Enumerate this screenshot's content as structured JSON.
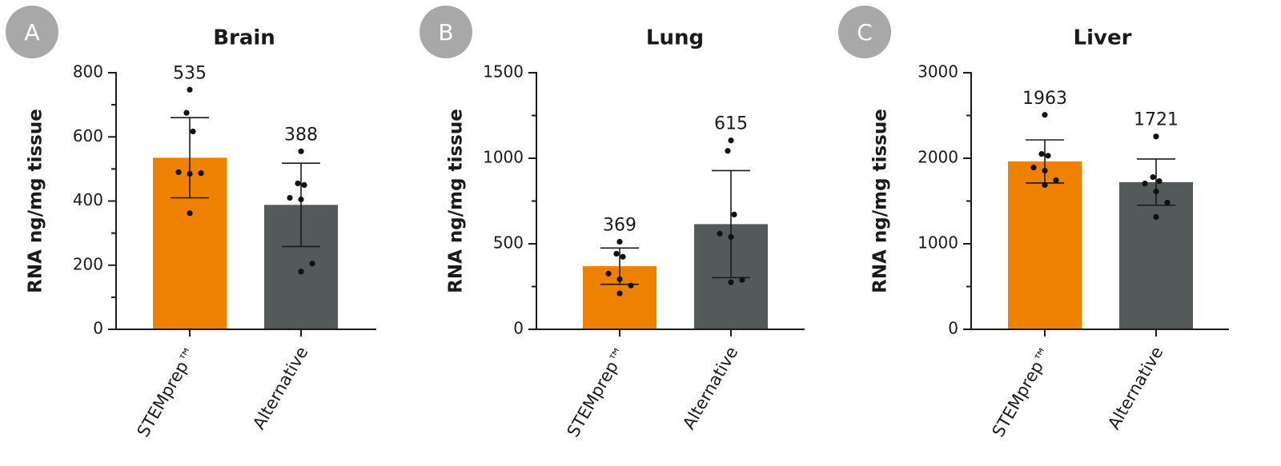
{
  "chart_data": [
    {
      "type": "bar",
      "panel": "A",
      "title": "Brain",
      "ylabel": "RNA ng/mg tissue",
      "categories": [
        "STEMprep™",
        "Alternative"
      ],
      "values": [
        535,
        388
      ],
      "errors": [
        125,
        130
      ],
      "colors": [
        "#ee8100",
        "#54595a"
      ],
      "points": [
        [
          747,
          675,
          617,
          490,
          485,
          487,
          362
        ],
        [
          555,
          455,
          450,
          410,
          405,
          205,
          180
        ]
      ],
      "ylim": [
        0,
        800
      ],
      "yticks": [
        0,
        200,
        400,
        600,
        800
      ],
      "yminorticks": [
        100,
        300,
        500,
        700
      ]
    },
    {
      "type": "bar",
      "panel": "B",
      "title": "Lung",
      "ylabel": "RNA ng/mg tissue",
      "categories": [
        "STEMprep™",
        "Alternative"
      ],
      "values": [
        369,
        615
      ],
      "errors": [
        106,
        313
      ],
      "colors": [
        "#ee8100",
        "#54595a"
      ],
      "points": [
        [
          512,
          442,
          424,
          326,
          293,
          256,
          210
        ],
        [
          1104,
          1043,
          671,
          559,
          540,
          289,
          275
        ]
      ],
      "ylim": [
        0,
        1500
      ],
      "yticks": [
        0,
        500,
        1000,
        1500
      ],
      "yminorticks": [
        250,
        750,
        1250
      ]
    },
    {
      "type": "bar",
      "panel": "C",
      "title": "Liver",
      "ylabel": "RNA ng/mg tissue",
      "categories": [
        "STEMprep™",
        "Alternative"
      ],
      "values": [
        1963,
        1721
      ],
      "errors": [
        252,
        270
      ],
      "colors": [
        "#ee8100",
        "#54595a"
      ],
      "points": [
        [
          2507,
          2050,
          2030,
          1892,
          1855,
          1743,
          1687
        ],
        [
          2255,
          1780,
          1733,
          1705,
          1612,
          1482,
          1314
        ]
      ],
      "ylim": [
        0,
        3000
      ],
      "yticks": [
        0,
        1000,
        2000,
        3000
      ],
      "yminorticks": [
        500,
        1500,
        2500
      ]
    }
  ]
}
